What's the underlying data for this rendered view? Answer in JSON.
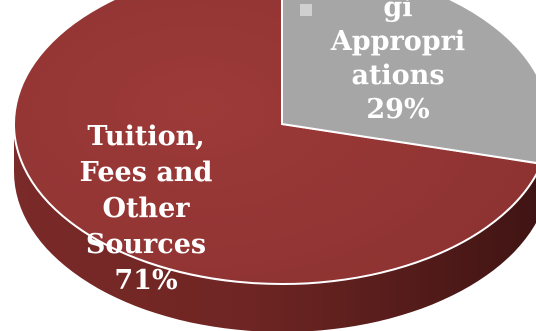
{
  "chart_data": {
    "type": "pie",
    "style": "3d",
    "slices": [
      {
        "name": "Tuition, Fees and Other Sources",
        "value": 71,
        "label_lines": [
          "Tuition,",
          "Fees and",
          "Other",
          "Sources",
          "71%"
        ],
        "color": "#943634"
      },
      {
        "name": "Legislative Appropriations",
        "value": 29,
        "label_lines": [
          "gi",
          "Appropri",
          "ations",
          "29%"
        ],
        "color": "#a6a6a6"
      }
    ]
  },
  "legend_marker_color": "#d0d0d0"
}
